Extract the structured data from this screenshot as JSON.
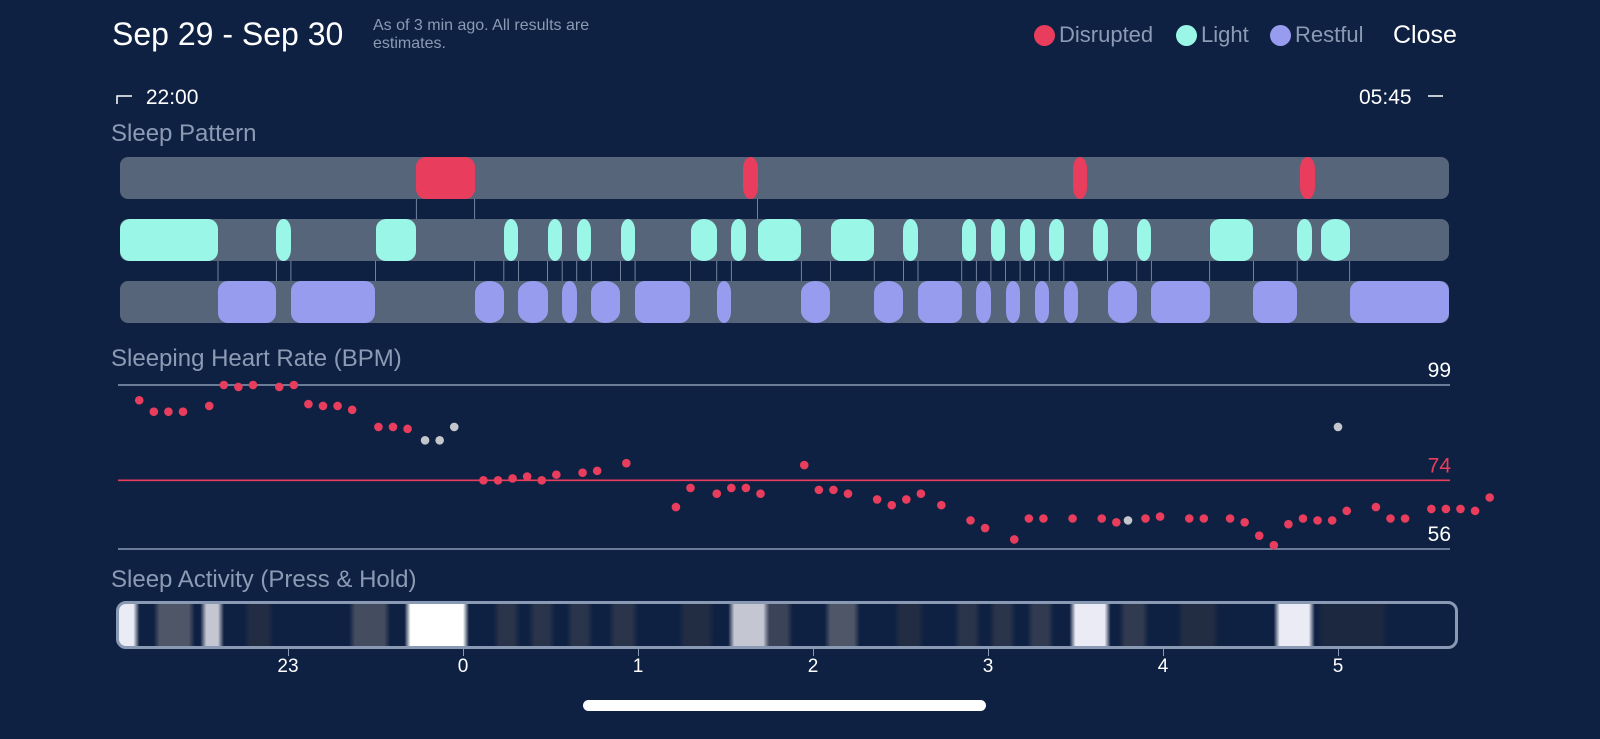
{
  "header": {
    "title": "Sep 29 - Sep 30",
    "subtitle": "As of 3 min ago. All results are estimates.",
    "close_label": "Close"
  },
  "legend": [
    {
      "label": "Disrupted",
      "color": "#e83d5d"
    },
    {
      "label": "Light",
      "color": "#9af7e7"
    },
    {
      "label": "Restful",
      "color": "#989cee"
    }
  ],
  "time_range": {
    "start": "22:00",
    "end": "05:45"
  },
  "sections": {
    "pattern_title": "Sleep Pattern",
    "hr_title": "Sleeping Heart Rate (BPM)",
    "activity_title": "Sleep Activity (Press & Hold)"
  },
  "chart_data": [
    {
      "type": "timeline",
      "title": "Sleep Pattern",
      "x_unit": "minutes since 22:00",
      "x_range": [
        0,
        465
      ],
      "rows": [
        {
          "name": "Disrupted",
          "color": "#e83d5d",
          "segments": [
            [
              104,
              124
            ],
            [
              216,
              221
            ],
            [
              329,
              334
            ],
            [
              407,
              412
            ]
          ]
        },
        {
          "name": "Light",
          "color": "#9af7e7",
          "segments": [
            [
              2,
              36
            ],
            [
              56,
              61
            ],
            [
              90,
              104
            ],
            [
              134,
              139
            ],
            [
              149,
              154
            ],
            [
              159,
              164
            ],
            [
              174,
              179
            ],
            [
              198,
              207
            ],
            [
              212,
              217
            ],
            [
              221,
              236
            ],
            [
              246,
              261
            ],
            [
              271,
              276
            ],
            [
              291,
              296
            ],
            [
              301,
              306
            ],
            [
              311,
              316
            ],
            [
              321,
              326
            ],
            [
              336,
              341
            ],
            [
              351,
              356
            ],
            [
              376,
              391
            ],
            [
              406,
              411
            ],
            [
              414,
              424
            ]
          ]
        },
        {
          "name": "Restful",
          "color": "#989cee",
          "segments": [
            [
              36,
              56
            ],
            [
              61,
              90
            ],
            [
              124,
              134
            ],
            [
              139,
              149
            ],
            [
              154,
              159
            ],
            [
              164,
              174
            ],
            [
              179,
              198
            ],
            [
              207,
              212
            ],
            [
              236,
              246
            ],
            [
              261,
              271
            ],
            [
              276,
              291
            ],
            [
              296,
              301
            ],
            [
              306,
              311
            ],
            [
              316,
              321
            ],
            [
              326,
              331
            ],
            [
              341,
              351
            ],
            [
              356,
              376
            ],
            [
              391,
              406
            ],
            [
              424,
              459
            ]
          ]
        }
      ]
    },
    {
      "type": "scatter",
      "title": "Sleeping Heart Rate (BPM)",
      "x_unit": "minutes since 22:00",
      "x_range": [
        0,
        465
      ],
      "y_range": [
        56,
        99
      ],
      "reference_lines": [
        {
          "value": 99,
          "label": "99",
          "color": "#8a9ab4"
        },
        {
          "value": 74,
          "label": "74",
          "color": "#e83d5d"
        },
        {
          "value": 56,
          "label": "56",
          "color": "#8a9ab4"
        }
      ],
      "series": [
        {
          "name": "heart rate",
          "color": "#e83d5d",
          "points": [
            [
              9,
              95
            ],
            [
              14,
              92
            ],
            [
              19,
              92
            ],
            [
              24,
              92
            ],
            [
              33,
              93.5
            ],
            [
              38,
              99
            ],
            [
              43,
              98.5
            ],
            [
              48,
              99
            ],
            [
              57,
              98.5
            ],
            [
              62,
              99
            ],
            [
              67,
              94
            ],
            [
              72,
              93.5
            ],
            [
              77,
              93.5
            ],
            [
              82,
              92.5
            ],
            [
              91,
              88
            ],
            [
              96,
              88
            ],
            [
              101,
              87.5
            ],
            [
              127,
              74
            ],
            [
              132,
              74
            ],
            [
              137,
              74.5
            ],
            [
              142,
              75
            ],
            [
              147,
              74
            ],
            [
              152,
              75.5
            ],
            [
              161,
              76
            ],
            [
              166,
              76.5
            ],
            [
              176,
              78.5
            ],
            [
              193,
              67
            ],
            [
              198,
              72
            ],
            [
              207,
              70.5
            ],
            [
              212,
              72
            ],
            [
              217,
              72
            ],
            [
              222,
              70.5
            ],
            [
              237,
              78
            ],
            [
              242,
              71.5
            ],
            [
              247,
              71.5
            ],
            [
              252,
              70.5
            ],
            [
              262,
              69
            ],
            [
              267,
              67.5
            ],
            [
              272,
              69
            ],
            [
              277,
              70.5
            ],
            [
              284,
              67.5
            ],
            [
              294,
              63.5
            ],
            [
              299,
              61.5
            ],
            [
              309,
              58.5
            ],
            [
              314,
              64
            ],
            [
              319,
              64
            ],
            [
              329,
              64
            ],
            [
              339,
              64
            ],
            [
              344,
              63
            ],
            [
              354,
              64
            ],
            [
              359,
              64.5
            ],
            [
              369,
              64
            ],
            [
              374,
              64
            ],
            [
              383,
              64
            ],
            [
              388,
              63
            ],
            [
              393,
              59.5
            ],
            [
              398,
              57
            ],
            [
              403,
              62.5
            ],
            [
              408,
              64
            ],
            [
              413,
              63.5
            ],
            [
              418,
              63.5
            ],
            [
              423,
              66
            ],
            [
              433,
              67
            ],
            [
              438,
              64
            ],
            [
              443,
              64
            ],
            [
              452,
              66.5
            ],
            [
              457,
              66.5
            ],
            [
              462,
              66.5
            ],
            [
              467,
              66
            ],
            [
              472,
              69.5
            ]
          ]
        },
        {
          "name": "uncertain",
          "color": "#c3c6cc",
          "points": [
            [
              107,
              84.5
            ],
            [
              112,
              84.5
            ],
            [
              117,
              88
            ],
            [
              348,
              63.5
            ],
            [
              420,
              88
            ]
          ]
        }
      ]
    },
    {
      "type": "heatmap",
      "title": "Sleep Activity (Press & Hold)",
      "x_unit": "hour",
      "tick_labels": [
        "23",
        "0",
        "1",
        "2",
        "3",
        "4",
        "5"
      ],
      "intensity_bands": [
        {
          "center_min": 3,
          "width_min": 8,
          "level": 0.95
        },
        {
          "center_min": 21,
          "width_min": 10,
          "level": 0.45
        },
        {
          "center_min": 34,
          "width_min": 4,
          "level": 0.85
        },
        {
          "center_min": 50,
          "width_min": 6,
          "level": 0.2
        },
        {
          "center_min": 88,
          "width_min": 10,
          "level": 0.4
        },
        {
          "center_min": 111,
          "width_min": 18,
          "level": 1.0
        },
        {
          "center_min": 135,
          "width_min": 5,
          "level": 0.25
        },
        {
          "center_min": 147,
          "width_min": 5,
          "level": 0.25
        },
        {
          "center_min": 160,
          "width_min": 5,
          "level": 0.25
        },
        {
          "center_min": 175,
          "width_min": 6,
          "level": 0.25
        },
        {
          "center_min": 200,
          "width_min": 8,
          "level": 0.2
        },
        {
          "center_min": 218,
          "width_min": 10,
          "level": 0.85
        },
        {
          "center_min": 228,
          "width_min": 6,
          "level": 0.35
        },
        {
          "center_min": 250,
          "width_min": 8,
          "level": 0.45
        },
        {
          "center_min": 273,
          "width_min": 6,
          "level": 0.2
        },
        {
          "center_min": 293,
          "width_min": 5,
          "level": 0.25
        },
        {
          "center_min": 305,
          "width_min": 5,
          "level": 0.25
        },
        {
          "center_min": 318,
          "width_min": 5,
          "level": 0.3
        },
        {
          "center_min": 335,
          "width_min": 10,
          "level": 0.95
        },
        {
          "center_min": 350,
          "width_min": 6,
          "level": 0.3
        },
        {
          "center_min": 372,
          "width_min": 10,
          "level": 0.2
        },
        {
          "center_min": 405,
          "width_min": 10,
          "level": 0.95
        },
        {
          "center_min": 425,
          "width_min": 20,
          "level": 0.15
        }
      ]
    }
  ]
}
